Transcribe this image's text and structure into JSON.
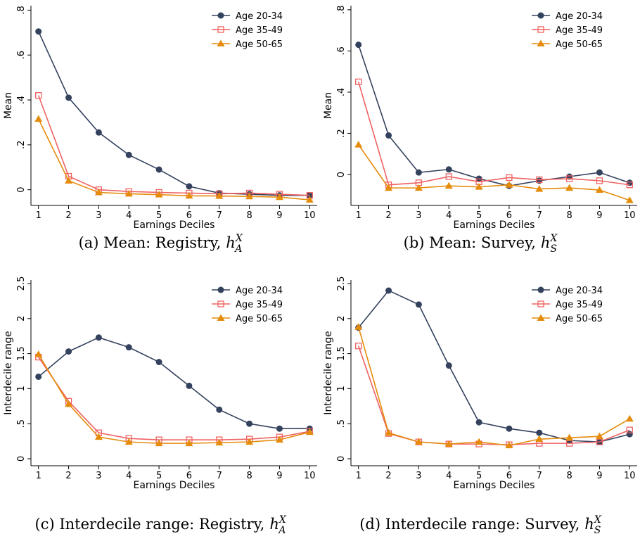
{
  "chart_data": [
    {
      "type": "line",
      "x_label": "Earnings Deciles",
      "y_label": "Mean",
      "caption": {
        "text": "(a) Mean: Registry,",
        "math": "h",
        "sup": "X",
        "sub": "A"
      },
      "x": [
        1,
        2,
        3,
        4,
        5,
        6,
        7,
        8,
        9,
        10
      ],
      "xlim": [
        0.75,
        10.25
      ],
      "xticks": [
        1,
        2,
        3,
        4,
        5,
        6,
        7,
        8,
        9,
        10
      ],
      "ylim": [
        -0.07,
        0.82
      ],
      "yticks": [
        0,
        {
          "value": 0.2,
          "label": ".2"
        },
        {
          "value": 0.4,
          "label": ".4"
        },
        {
          "value": 0.6,
          "label": ".6"
        },
        {
          "value": 0.8,
          "label": ".8"
        }
      ],
      "legend": "top-right",
      "series": [
        {
          "name": "Age 20-34",
          "color": "#34425e",
          "marker": "circle",
          "values": [
            0.705,
            0.41,
            0.255,
            0.155,
            0.09,
            0.015,
            -0.015,
            -0.02,
            -0.025,
            -0.025
          ]
        },
        {
          "name": "Age 35-49",
          "color": "#f06262",
          "marker": "square",
          "values": [
            0.42,
            0.06,
            0.0,
            -0.008,
            -0.012,
            -0.015,
            -0.018,
            -0.015,
            -0.02,
            -0.025
          ]
        },
        {
          "name": "Age 50-65",
          "color": "#e58c0c",
          "marker": "triangle",
          "values": [
            0.315,
            0.04,
            -0.012,
            -0.018,
            -0.022,
            -0.027,
            -0.028,
            -0.03,
            -0.033,
            -0.045
          ]
        }
      ]
    },
    {
      "type": "line",
      "x_label": "Earnings Deciles",
      "y_label": "Mean",
      "caption": {
        "text": "(b) Mean: Survey,",
        "math": "h",
        "sup": "X",
        "sub": "S"
      },
      "x": [
        1,
        2,
        3,
        4,
        5,
        6,
        7,
        8,
        9,
        10
      ],
      "xlim": [
        0.75,
        10.25
      ],
      "xticks": [
        1,
        2,
        3,
        4,
        5,
        6,
        7,
        8,
        9,
        10
      ],
      "ylim": [
        -0.15,
        0.82
      ],
      "yticks": [
        0,
        {
          "value": 0.2,
          "label": ".2"
        },
        {
          "value": 0.4,
          "label": ".4"
        },
        {
          "value": 0.6,
          "label": ".6"
        },
        {
          "value": 0.8,
          "label": ".8"
        }
      ],
      "legend": "top-right",
      "series": [
        {
          "name": "Age 20-34",
          "color": "#34425e",
          "marker": "circle",
          "values": [
            0.63,
            0.19,
            0.01,
            0.025,
            -0.02,
            -0.055,
            -0.03,
            -0.01,
            0.01,
            -0.04
          ]
        },
        {
          "name": "Age 35-49",
          "color": "#f06262",
          "marker": "square",
          "values": [
            0.45,
            -0.05,
            -0.04,
            -0.01,
            -0.035,
            -0.015,
            -0.025,
            -0.02,
            -0.03,
            -0.05
          ]
        },
        {
          "name": "Age 50-65",
          "color": "#e58c0c",
          "marker": "triangle",
          "values": [
            0.145,
            -0.065,
            -0.065,
            -0.055,
            -0.06,
            -0.05,
            -0.07,
            -0.065,
            -0.075,
            -0.125
          ]
        }
      ]
    },
    {
      "type": "line",
      "x_label": "Earnings Deciles",
      "y_label": "Interdecile range",
      "caption": {
        "text": "(c) Interdecile range: Registry,",
        "math": "h",
        "sup": "X",
        "sub": "A"
      },
      "x": [
        1,
        2,
        3,
        4,
        5,
        6,
        7,
        8,
        9,
        10
      ],
      "xlim": [
        0.75,
        10.25
      ],
      "xticks": [
        1,
        2,
        3,
        4,
        5,
        6,
        7,
        8,
        9,
        10
      ],
      "ylim": [
        -0.1,
        2.55
      ],
      "yticks": [
        0,
        {
          "value": 0.5,
          "label": ".5"
        },
        1,
        1.5,
        2,
        2.5
      ],
      "legend": "top-right",
      "series": [
        {
          "name": "Age 20-34",
          "color": "#34425e",
          "marker": "circle",
          "values": [
            1.17,
            1.53,
            1.73,
            1.59,
            1.38,
            1.04,
            0.7,
            0.5,
            0.43,
            0.43
          ]
        },
        {
          "name": "Age 35-49",
          "color": "#f06262",
          "marker": "square",
          "values": [
            1.45,
            0.82,
            0.37,
            0.29,
            0.27,
            0.27,
            0.27,
            0.28,
            0.31,
            0.39
          ]
        },
        {
          "name": "Age 50-65",
          "color": "#e58c0c",
          "marker": "triangle",
          "values": [
            1.49,
            0.78,
            0.31,
            0.24,
            0.22,
            0.22,
            0.23,
            0.24,
            0.27,
            0.38
          ]
        }
      ]
    },
    {
      "type": "line",
      "x_label": "Earnings Deciles",
      "y_label": "Interdecile range",
      "caption": {
        "text": "(d) Interdecile range: Survey,",
        "math": "h",
        "sup": "X",
        "sub": "S"
      },
      "x": [
        1,
        2,
        3,
        4,
        5,
        6,
        7,
        8,
        9,
        10
      ],
      "xlim": [
        0.75,
        10.25
      ],
      "xticks": [
        1,
        2,
        3,
        4,
        5,
        6,
        7,
        8,
        9,
        10
      ],
      "ylim": [
        -0.1,
        2.55
      ],
      "yticks": [
        0,
        {
          "value": 0.5,
          "label": ".5"
        },
        1,
        1.5,
        2,
        2.5
      ],
      "legend": "top-right",
      "series": [
        {
          "name": "Age 20-34",
          "color": "#34425e",
          "marker": "circle",
          "values": [
            1.87,
            2.4,
            2.2,
            1.33,
            0.52,
            0.43,
            0.37,
            0.26,
            0.24,
            0.35
          ]
        },
        {
          "name": "Age 35-49",
          "color": "#f06262",
          "marker": "square",
          "values": [
            1.61,
            0.36,
            0.24,
            0.21,
            0.21,
            0.2,
            0.22,
            0.22,
            0.24,
            0.41
          ]
        },
        {
          "name": "Age 50-65",
          "color": "#e58c0c",
          "marker": "triangle",
          "values": [
            1.88,
            0.37,
            0.24,
            0.21,
            0.24,
            0.19,
            0.28,
            0.3,
            0.32,
            0.57
          ]
        }
      ]
    }
  ]
}
